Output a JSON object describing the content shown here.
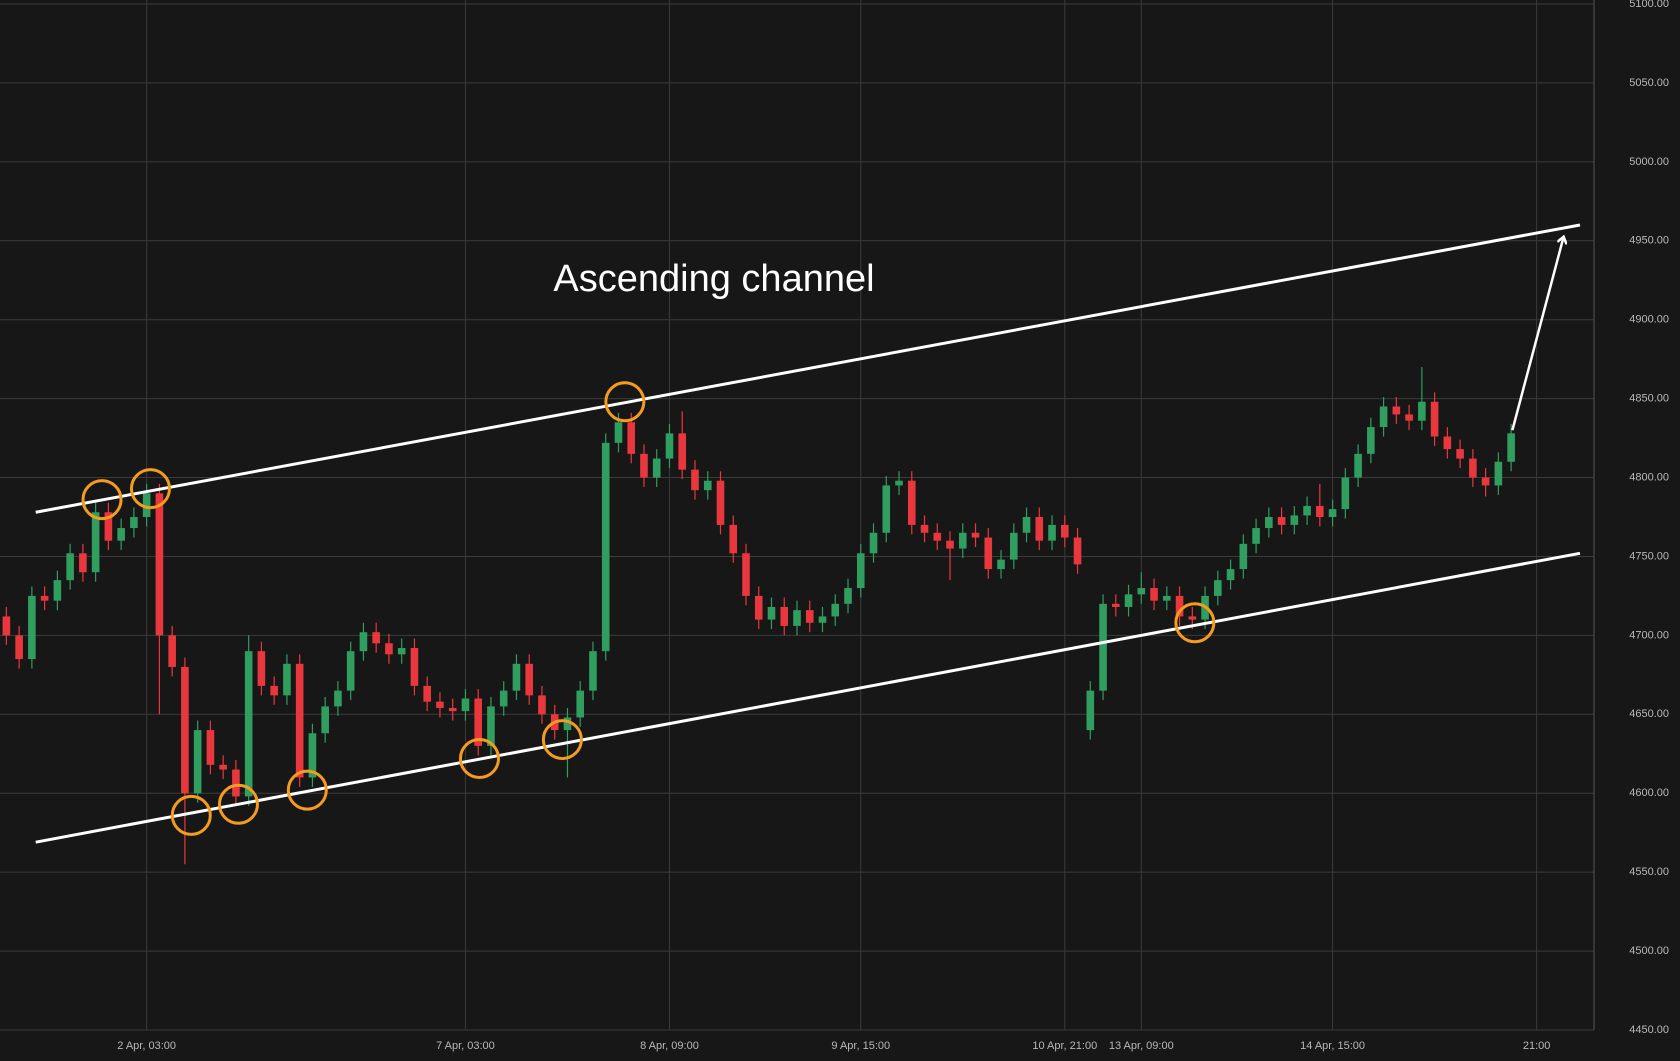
{
  "chart_data": {
    "type": "candlestick",
    "annotation": "Ascending channel",
    "categories": [
      null,
      null,
      null,
      null,
      null,
      null,
      null,
      null,
      null,
      null,
      null,
      "2 Apr, 03:00",
      null,
      null,
      null,
      null,
      null,
      null,
      null,
      null,
      null,
      null,
      null,
      null,
      null,
      null,
      null,
      null,
      null,
      null,
      null,
      null,
      null,
      null,
      null,
      null,
      "7 Apr, 03:00",
      null,
      null,
      null,
      null,
      null,
      null,
      null,
      null,
      null,
      null,
      null,
      null,
      null,
      null,
      null,
      "8 Apr, 09:00",
      null,
      null,
      null,
      null,
      null,
      null,
      null,
      null,
      null,
      null,
      null,
      null,
      null,
      null,
      "9 Apr, 15:00",
      null,
      null,
      null,
      null,
      null,
      null,
      null,
      null,
      null,
      null,
      null,
      null,
      null,
      null,
      null,
      "10 Apr, 21:00",
      null,
      null,
      null,
      null,
      null,
      "13 Apr, 09:00",
      null,
      null,
      null,
      null,
      null,
      null,
      null,
      null,
      null,
      null,
      null,
      null,
      null,
      null,
      "14 Apr, 15:00",
      null,
      null,
      null,
      null,
      null,
      null,
      null,
      null,
      null,
      null,
      null,
      null,
      null,
      null,
      null,
      "21:00",
      null,
      null,
      null,
      null
    ],
    "open": [
      4712,
      4700,
      4685,
      4725,
      4722,
      4735,
      4752,
      4740,
      4778,
      4760,
      4768,
      4775,
      4790,
      4700,
      4680,
      4600,
      4640,
      4618,
      4615,
      4598,
      4690,
      4668,
      4662,
      4682,
      4610,
      4638,
      4655,
      4665,
      4690,
      4702,
      4695,
      4688,
      4692,
      4668,
      4658,
      4654,
      4652,
      4660,
      4630,
      4655,
      4665,
      4682,
      4662,
      4650,
      4640,
      4648,
      4665,
      4690,
      4822,
      4835,
      4815,
      4800,
      4812,
      4828,
      4805,
      4792,
      4798,
      4770,
      4752,
      4725,
      4710,
      4718,
      4706,
      4716,
      4708,
      4712,
      4720,
      4730,
      4752,
      4765,
      4795,
      4798,
      4770,
      4765,
      4760,
      4755,
      4765,
      4762,
      4742,
      4748,
      4765,
      4775,
      4760,
      4770,
      4762,
      4640,
      4665,
      4720,
      4718,
      4726,
      4730,
      4722,
      4725,
      4712,
      4710,
      4725,
      4735,
      4742,
      4758,
      4768,
      4775,
      4770,
      4776,
      4782,
      4775,
      4780,
      4800,
      4815,
      4832,
      4845,
      4840,
      4836,
      4848,
      4826,
      4818,
      4812,
      4800,
      4795,
      4810,
      null,
      null,
      null,
      null,
      null,
      null
    ],
    "high": [
      4718,
      4706,
      4731,
      4731,
      4741,
      4758,
      4758,
      4784,
      4784,
      4774,
      4781,
      4796,
      4796,
      4706,
      4686,
      4646,
      4646,
      4624,
      4621,
      4700,
      4696,
      4674,
      4688,
      4688,
      4644,
      4661,
      4671,
      4696,
      4708,
      4708,
      4701,
      4698,
      4698,
      4674,
      4664,
      4660,
      4666,
      4666,
      4661,
      4671,
      4688,
      4688,
      4668,
      4656,
      4654,
      4671,
      4696,
      4828,
      4841,
      4841,
      4821,
      4818,
      4834,
      4842,
      4811,
      4804,
      4804,
      4776,
      4758,
      4731,
      4724,
      4724,
      4722,
      4722,
      4718,
      4726,
      4736,
      4758,
      4771,
      4801,
      4804,
      4804,
      4776,
      4771,
      4766,
      4771,
      4771,
      4768,
      4754,
      4771,
      4781,
      4781,
      4776,
      4776,
      4768,
      4671,
      4726,
      4726,
      4732,
      4740,
      4736,
      4731,
      4731,
      4718,
      4731,
      4741,
      4748,
      4764,
      4774,
      4781,
      4781,
      4782,
      4788,
      4796,
      4786,
      4806,
      4821,
      4838,
      4851,
      4851,
      4846,
      4870,
      4854,
      4832,
      4824,
      4818,
      4806,
      4816,
      4834,
      null,
      null,
      null,
      null,
      null,
      null
    ],
    "low": [
      4694,
      4679,
      4679,
      4716,
      4716,
      4729,
      4734,
      4734,
      4754,
      4754,
      4762,
      4769,
      4650,
      4674,
      4555,
      4594,
      4612,
      4609,
      4592,
      4592,
      4662,
      4656,
      4656,
      4604,
      4604,
      4632,
      4649,
      4659,
      4684,
      4689,
      4682,
      4682,
      4662,
      4652,
      4648,
      4646,
      4646,
      4624,
      4624,
      4649,
      4659,
      4656,
      4644,
      4634,
      4610,
      4642,
      4659,
      4684,
      4816,
      4809,
      4794,
      4794,
      4806,
      4799,
      4786,
      4786,
      4764,
      4746,
      4719,
      4704,
      4704,
      4700,
      4700,
      4702,
      4702,
      4706,
      4714,
      4724,
      4746,
      4759,
      4789,
      4764,
      4759,
      4754,
      4735,
      4749,
      4756,
      4736,
      4736,
      4742,
      4759,
      4754,
      4754,
      4756,
      4739,
      4634,
      4659,
      4712,
      4712,
      4720,
      4716,
      4716,
      4706,
      4704,
      4704,
      4719,
      4729,
      4736,
      4752,
      4762,
      4764,
      4764,
      4770,
      4769,
      4769,
      4774,
      4794,
      4809,
      4826,
      4834,
      4830,
      4830,
      4820,
      4812,
      4806,
      4794,
      4788,
      4789,
      4804,
      null,
      null,
      null,
      null,
      null,
      null
    ],
    "close": [
      4700,
      4685,
      4725,
      4722,
      4735,
      4752,
      4740,
      4778,
      4760,
      4768,
      4775,
      4790,
      4700,
      4680,
      4600,
      4640,
      4618,
      4615,
      4598,
      4690,
      4668,
      4662,
      4682,
      4610,
      4638,
      4655,
      4665,
      4690,
      4702,
      4695,
      4688,
      4692,
      4668,
      4658,
      4654,
      4652,
      4660,
      4630,
      4655,
      4665,
      4682,
      4662,
      4650,
      4640,
      4648,
      4665,
      4690,
      4822,
      4835,
      4815,
      4800,
      4812,
      4828,
      4805,
      4792,
      4798,
      4770,
      4752,
      4725,
      4710,
      4718,
      4706,
      4716,
      4708,
      4712,
      4720,
      4730,
      4752,
      4765,
      4795,
      4798,
      4770,
      4765,
      4760,
      4755,
      4765,
      4762,
      4742,
      4748,
      4765,
      4775,
      4760,
      4770,
      4762,
      4745,
      4665,
      4720,
      4718,
      4726,
      4730,
      4722,
      4725,
      4712,
      4710,
      4725,
      4735,
      4742,
      4758,
      4768,
      4775,
      4770,
      4776,
      4782,
      4775,
      4780,
      4800,
      4815,
      4832,
      4845,
      4840,
      4836,
      4848,
      4826,
      4818,
      4812,
      4800,
      4795,
      4810,
      4828,
      null,
      null,
      null,
      null,
      null,
      null
    ],
    "up_color": "#2f9e5f",
    "down_color": "#e8383d",
    "ylim": [
      4450,
      5100
    ],
    "yticks": [
      {
        "value": 4450,
        "label": "4450.00"
      },
      {
        "value": 4500,
        "label": "4500.00"
      },
      {
        "value": 4550,
        "label": "4550.00"
      },
      {
        "value": 4600,
        "label": "4600.00"
      },
      {
        "value": 4650,
        "label": "4650.00"
      },
      {
        "value": 4700,
        "label": "4700.00"
      },
      {
        "value": 4750,
        "label": "4750.00"
      },
      {
        "value": 4800,
        "label": "4800.00"
      },
      {
        "value": 4850,
        "label": "4850.00"
      },
      {
        "value": 4900,
        "label": "4900.00"
      },
      {
        "value": 4950,
        "label": "4950.00"
      },
      {
        "value": 5000,
        "label": "5000.00"
      },
      {
        "value": 5050,
        "label": "5050.00"
      },
      {
        "value": 5100,
        "label": "5100.00"
      }
    ],
    "grid": true,
    "channel_lines": [
      {
        "x": [
          2.3,
          123.4
        ],
        "y": [
          4778,
          4960
        ]
      },
      {
        "x": [
          2.3,
          123.4
        ],
        "y": [
          4569,
          4752
        ]
      }
    ],
    "arrow": {
      "x": [
        118.1,
        122.1
      ],
      "y": [
        4830,
        4952
      ]
    },
    "highlights": {
      "color": "#f39c1f",
      "x": [
        7.5,
        11.3,
        14.5,
        18.2,
        23.6,
        37.1,
        43.6,
        48.5,
        93.2
      ],
      "y": [
        4786,
        4793,
        4586,
        4593,
        4602,
        4622,
        4634,
        4848,
        4708
      ]
    }
  }
}
